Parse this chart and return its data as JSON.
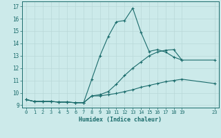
{
  "title": "",
  "xlabel": "Humidex (Indice chaleur)",
  "ylabel": "",
  "bg_color": "#cceaea",
  "grid_color": "#b8d8d8",
  "line_color": "#1a6b6b",
  "xlim": [
    -0.5,
    23.5
  ],
  "ylim": [
    8.8,
    17.4
  ],
  "xticks": [
    0,
    1,
    2,
    3,
    4,
    5,
    6,
    7,
    8,
    9,
    10,
    11,
    12,
    13,
    14,
    15,
    16,
    17,
    18,
    19,
    23
  ],
  "yticks": [
    9,
    10,
    11,
    12,
    13,
    14,
    15,
    16,
    17
  ],
  "line1_x": [
    0,
    1,
    2,
    3,
    4,
    5,
    6,
    7,
    8,
    9,
    10,
    11,
    12,
    13,
    14,
    15,
    16,
    17,
    18,
    19,
    23
  ],
  "line1_y": [
    9.45,
    9.3,
    9.3,
    9.3,
    9.25,
    9.25,
    9.2,
    9.2,
    9.75,
    9.75,
    9.85,
    9.95,
    10.1,
    10.25,
    10.45,
    10.6,
    10.75,
    10.9,
    11.0,
    11.1,
    10.75
  ],
  "line2_x": [
    0,
    1,
    2,
    3,
    4,
    5,
    6,
    7,
    8,
    9,
    10,
    11,
    12,
    13,
    14,
    15,
    16,
    17,
    18,
    19,
    23
  ],
  "line2_y": [
    9.45,
    9.3,
    9.3,
    9.3,
    9.25,
    9.25,
    9.2,
    9.2,
    9.75,
    9.85,
    10.1,
    10.7,
    11.4,
    12.0,
    12.5,
    13.0,
    13.3,
    13.45,
    13.5,
    12.65,
    12.65
  ],
  "line3_x": [
    0,
    1,
    2,
    3,
    4,
    5,
    6,
    7,
    8,
    9,
    10,
    11,
    12,
    13,
    14,
    15,
    16,
    17,
    18,
    19
  ],
  "line3_y": [
    9.45,
    9.3,
    9.3,
    9.3,
    9.25,
    9.25,
    9.2,
    9.2,
    11.1,
    13.0,
    14.55,
    15.75,
    15.85,
    16.85,
    14.9,
    13.35,
    13.5,
    13.3,
    12.9,
    12.65
  ]
}
